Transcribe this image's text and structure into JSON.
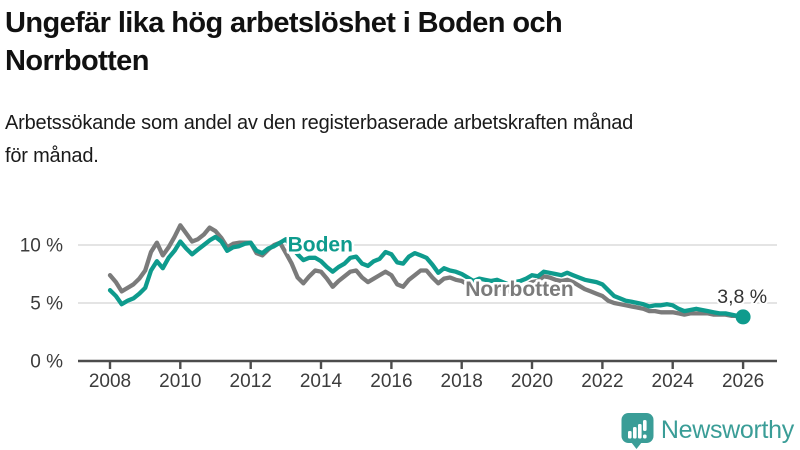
{
  "header": {
    "title": "Ungefär lika hög arbetslöshet i Boden och\nNorrbotten",
    "subtitle": "Arbetssökande som andel av den registerbaserade arbetskraften månad\nför månad."
  },
  "footer": {
    "brand": "Newsworthy",
    "logo_icon": "bar-chart-speech-bubble-icon",
    "brand_color": "#3a9d97"
  },
  "colors": {
    "boden_line": "#0e9b8d",
    "norrbotten_line": "#7b7b7b",
    "gridline": "#dcdcdc",
    "axis": "#4c4c4c",
    "tick_text": "#3c3c3c",
    "annotation_text": "#333333"
  },
  "chart_data": {
    "type": "line",
    "title": "Ungefär lika hög arbetslöshet i Boden och Norrbotten",
    "subtitle": "Arbetssökande som andel av den registerbaserade arbetskraften månad för månad.",
    "unit": "%",
    "x_start_year": 2008,
    "points_per_year": 6,
    "x_ticks": [
      "2008",
      "2010",
      "2012",
      "2014",
      "2016",
      "2018",
      "2020",
      "2022",
      "2024",
      "2026"
    ],
    "y_ticks": [
      {
        "value": 0,
        "label": "0 %"
      },
      {
        "value": 5,
        "label": "5 %"
      },
      {
        "value": 10,
        "label": "10 %"
      }
    ],
    "ylim": [
      0,
      12.5
    ],
    "grid": "horizontal-only",
    "legend_position": "inline-labels",
    "series": [
      {
        "name": "Norrbotten",
        "color": "#7b7b7b",
        "label_at": {
          "year": 2018.1,
          "value": 5.6
        },
        "values": [
          7.4,
          6.8,
          6.0,
          6.3,
          6.6,
          7.1,
          7.8,
          9.4,
          10.2,
          9.1,
          9.8,
          10.7,
          11.7,
          11.0,
          10.3,
          10.5,
          10.9,
          11.5,
          11.2,
          10.6,
          9.8,
          10.1,
          10.2,
          10.2,
          10.2,
          9.3,
          9.1,
          9.6,
          10.0,
          10.2,
          9.3,
          8.4,
          7.2,
          6.7,
          7.3,
          7.8,
          7.7,
          7.1,
          6.4,
          6.9,
          7.3,
          7.7,
          7.8,
          7.2,
          6.8,
          7.1,
          7.4,
          7.7,
          7.4,
          6.6,
          6.4,
          7.0,
          7.4,
          7.8,
          7.8,
          7.2,
          6.7,
          7.1,
          7.2,
          7.0,
          6.9,
          6.6,
          6.3,
          6.5,
          6.4,
          6.3,
          6.4,
          6.2,
          6.0,
          6.2,
          6.3,
          6.5,
          6.8,
          6.9,
          7.3,
          7.2,
          7.0,
          6.9,
          7.0,
          6.8,
          6.5,
          6.2,
          6.0,
          5.8,
          5.6,
          5.2,
          5.0,
          4.9,
          4.8,
          4.7,
          4.6,
          4.5,
          4.3,
          4.3,
          4.2,
          4.2,
          4.2,
          4.1,
          4.0,
          4.1,
          4.1,
          4.1,
          4.1,
          4.0,
          4.0,
          4.0,
          3.9,
          3.9,
          3.9
        ]
      },
      {
        "name": "Boden",
        "color": "#0e9b8d",
        "label_at": {
          "year": 2013.05,
          "value": 9.45
        },
        "end_dot": true,
        "values": [
          6.1,
          5.6,
          4.9,
          5.2,
          5.4,
          5.8,
          6.3,
          7.8,
          8.6,
          8.0,
          8.9,
          9.5,
          10.3,
          9.7,
          9.2,
          9.6,
          10.0,
          10.4,
          10.7,
          10.3,
          9.5,
          9.8,
          9.9,
          10.1,
          10.2,
          9.5,
          9.3,
          9.7,
          9.9,
          10.2,
          10.5,
          9.8,
          9.2,
          8.7,
          8.9,
          8.9,
          8.6,
          8.1,
          7.7,
          8.1,
          8.4,
          8.9,
          9.0,
          8.4,
          8.2,
          8.6,
          8.8,
          9.4,
          9.2,
          8.5,
          8.4,
          9.0,
          9.3,
          9.1,
          8.9,
          8.3,
          7.6,
          8.0,
          7.8,
          7.7,
          7.5,
          7.2,
          6.9,
          7.1,
          7.0,
          6.9,
          7.0,
          6.8,
          6.6,
          6.8,
          6.9,
          7.1,
          7.4,
          7.3,
          7.7,
          7.6,
          7.5,
          7.4,
          7.6,
          7.4,
          7.2,
          7.0,
          6.9,
          6.8,
          6.6,
          6.1,
          5.6,
          5.4,
          5.2,
          5.1,
          5.0,
          4.9,
          4.7,
          4.8,
          4.8,
          4.9,
          4.8,
          4.5,
          4.3,
          4.4,
          4.5,
          4.4,
          4.3,
          4.2,
          4.1,
          4.1,
          4.0,
          3.9,
          3.8
        ]
      }
    ],
    "annotation": {
      "text": "3,8 %",
      "series": "Boden",
      "at": "last-point"
    }
  }
}
